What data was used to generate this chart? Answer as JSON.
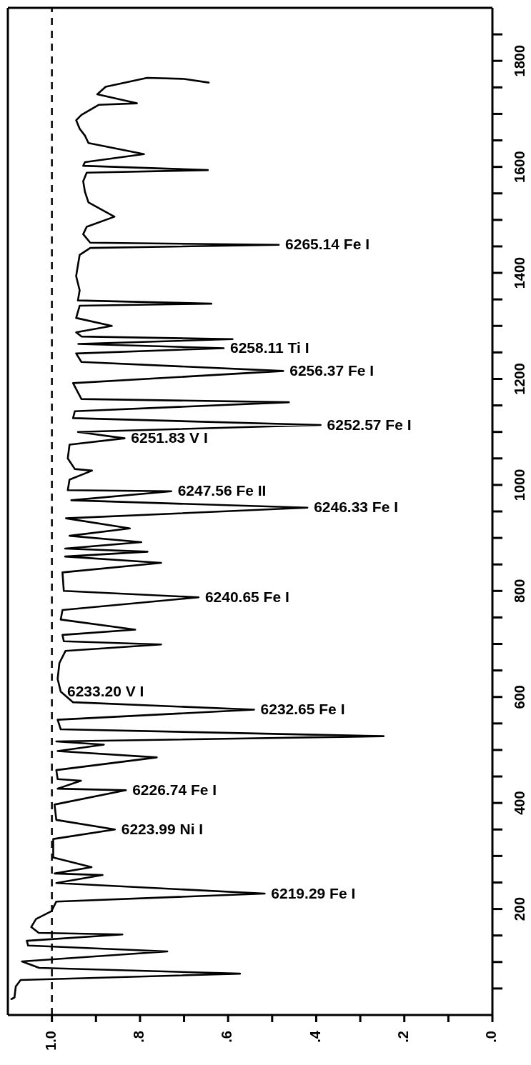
{
  "chart_data": {
    "type": "line",
    "series": [
      {
        "color": "#000000",
        "x": [
          0.644,
          0.7,
          0.784,
          0.878,
          0.897,
          0.807,
          0.894,
          0.933,
          0.945,
          0.937,
          0.925,
          0.917,
          0.791,
          0.925,
          0.929,
          0.646,
          0.921,
          0.929,
          0.925,
          0.917,
          0.858,
          0.921,
          0.929,
          0.913,
          0.485,
          0.913,
          0.937,
          0.945,
          0.937,
          0.941,
          0.638,
          0.937,
          0.945,
          0.864,
          0.945,
          0.933,
          0.59,
          0.94,
          0.61,
          0.945,
          0.933,
          0.475,
          0.952,
          0.933,
          0.462,
          0.948,
          0.952,
          0.39,
          0.941,
          0.835,
          0.96,
          0.964,
          0.948,
          0.909,
          0.96,
          0.964,
          0.729,
          0.956,
          0.42,
          0.968,
          0.823,
          0.96,
          0.797,
          0.97,
          0.783,
          0.97,
          0.752,
          0.976,
          0.973,
          0.667,
          0.976,
          0.98,
          0.811,
          0.976,
          0.973,
          0.752,
          0.969,
          0.983,
          0.987,
          0.98,
          0.952,
          0.541,
          0.987,
          0.98,
          0.247,
          0.99,
          0.882,
          0.987,
          0.762,
          0.99,
          0.987,
          0.934,
          0.987,
          0.832,
          0.994,
          0.99,
          0.857,
          0.997,
          0.997,
          0.91,
          0.994,
          0.885,
          0.99,
          0.517,
          0.99,
          1.001,
          1.036,
          1.047,
          1.03,
          0.84,
          1.057,
          1.054,
          0.738,
          1.068,
          1.029,
          0.573,
          1.071,
          1.082,
          1.085,
          1.092
        ],
        "values": [
          1759,
          1766,
          1768,
          1751,
          1737,
          1720,
          1717,
          1698,
          1688,
          1672,
          1659,
          1645,
          1624,
          1609,
          1602,
          1594,
          1589,
          1573,
          1553,
          1533,
          1506,
          1487,
          1473,
          1457,
          1453,
          1447,
          1434,
          1394,
          1367,
          1348,
          1342,
          1338,
          1315,
          1300,
          1288,
          1280,
          1275,
          1266,
          1258,
          1248,
          1232,
          1215,
          1192,
          1162,
          1156,
          1139,
          1126,
          1113,
          1100,
          1088,
          1076,
          1050,
          1030,
          1027,
          1010,
          990,
          988,
          971,
          957,
          937,
          918,
          904,
          892,
          880,
          874,
          865,
          853,
          835,
          800,
          788,
          764,
          746,
          727,
          717,
          705,
          699,
          687,
          664,
          634,
          610,
          590,
          576,
          557,
          539,
          526,
          516,
          510,
          498,
          486,
          462,
          445,
          442,
          427,
          424,
          397,
          368,
          350,
          332,
          297,
          279,
          267,
          264,
          249,
          229,
          214,
          196,
          181,
          166,
          155,
          152,
          140,
          131,
          120,
          101,
          89,
          78,
          66,
          54,
          33,
          30
        ]
      }
    ],
    "xlim": [
      1.1,
      0
    ],
    "xticks": [
      {
        "value": 1.0,
        "label": "1.0"
      },
      {
        "value": 0.9,
        "label": null
      },
      {
        "value": 0.8,
        "label": ".8"
      },
      {
        "value": 0.7,
        "label": null
      },
      {
        "value": 0.6,
        "label": ".6"
      },
      {
        "value": 0.5,
        "label": null
      },
      {
        "value": 0.4,
        "label": ".4"
      },
      {
        "value": 0.3,
        "label": null
      },
      {
        "value": 0.2,
        "label": ".2"
      },
      {
        "value": 0.1,
        "label": null
      },
      {
        "value": 0,
        "label": ".0"
      }
    ],
    "ylim": [
      0,
      1900
    ],
    "yticks": [
      {
        "value": 50,
        "label": null
      },
      {
        "value": 100,
        "label": null
      },
      {
        "value": 150,
        "label": null
      },
      200,
      {
        "value": 250,
        "label": null
      },
      {
        "value": 300,
        "label": null
      },
      {
        "value": 350,
        "label": null
      },
      400,
      {
        "value": 450,
        "label": null
      },
      {
        "value": 500,
        "label": null
      },
      {
        "value": 550,
        "label": null
      },
      600,
      {
        "value": 650,
        "label": null
      },
      {
        "value": 700,
        "label": null
      },
      {
        "value": 750,
        "label": null
      },
      800,
      {
        "value": 850,
        "label": null
      },
      {
        "value": 900,
        "label": null
      },
      {
        "value": 950,
        "label": null
      },
      1000,
      {
        "value": 1050,
        "label": null
      },
      {
        "value": 1100,
        "label": null
      },
      {
        "value": 1150,
        "label": null
      },
      1200,
      {
        "value": 1250,
        "label": null
      },
      {
        "value": 1300,
        "label": null
      },
      {
        "value": 1350,
        "label": null
      },
      1400,
      {
        "value": 1450,
        "label": null
      },
      {
        "value": 1500,
        "label": null
      },
      {
        "value": 1550,
        "label": null
      },
      1600,
      {
        "value": 1650,
        "label": null
      },
      {
        "value": 1700,
        "label": null
      },
      {
        "value": 1750,
        "label": null
      },
      1800,
      {
        "value": 1850,
        "label": null
      }
    ],
    "ref_lines": [
      {
        "axis": "x",
        "value": 1.0,
        "line_style": "dashed",
        "color": "#000000"
      }
    ],
    "annotations": [
      {
        "text": "6265.14 Fe I",
        "x": 0.485,
        "y": 1453
      },
      {
        "text": "6258.11 Ti I",
        "x": 0.61,
        "y": 1258
      },
      {
        "text": "6256.37 Fe I",
        "x": 0.475,
        "y": 1215
      },
      {
        "text": "6252.57 Fe I",
        "x": 0.39,
        "y": 1113
      },
      {
        "text": "6251.83 V I",
        "x": 0.835,
        "y": 1088
      },
      {
        "text": "6247.56 Fe II",
        "x": 0.729,
        "y": 988
      },
      {
        "text": "6246.33 Fe I",
        "x": 0.42,
        "y": 957
      },
      {
        "text": "6240.65 Fe I",
        "x": 0.667,
        "y": 788
      },
      {
        "text": "6233.20 V I",
        "x": 0.98,
        "y": 610
      },
      {
        "text": "6232.65 Fe I",
        "x": 0.541,
        "y": 576
      },
      {
        "text": "6226.74 Fe I",
        "x": 0.832,
        "y": 424
      },
      {
        "text": "6223.99 Ni I",
        "x": 0.857,
        "y": 350
      },
      {
        "text": "6219.29 Fe I",
        "x": 0.517,
        "y": 229
      }
    ],
    "grid": false,
    "legend": false,
    "marker": "none",
    "line_style": "solid"
  }
}
